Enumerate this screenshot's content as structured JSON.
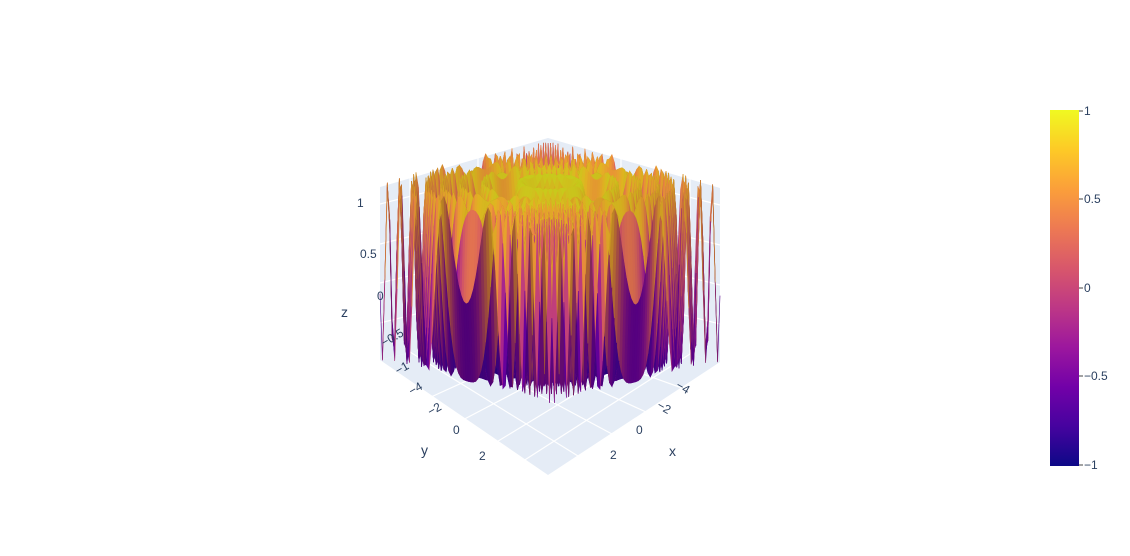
{
  "chart_data": {
    "type": "surface",
    "surface_function": "sin(x^2 + y^2)",
    "x_range": [
      -5,
      5
    ],
    "y_range": [
      -5,
      5
    ],
    "z_range": [
      -1,
      1
    ],
    "axes": {
      "x": {
        "title": "x",
        "ticks": [
          "−4",
          "−2",
          "0",
          "2"
        ]
      },
      "y": {
        "title": "y",
        "ticks": [
          "−4",
          "−2",
          "0",
          "2"
        ]
      },
      "z": {
        "title": "z",
        "ticks": [
          "−1",
          "−0.5",
          "0",
          "0.5",
          "1"
        ]
      }
    },
    "colorbar": {
      "colorscale": "plasma",
      "stops": [
        "#0d0887",
        "#46039f",
        "#7201a8",
        "#9c179e",
        "#bd3786",
        "#d8576b",
        "#ed7953",
        "#fb9f3a",
        "#fdca26",
        "#f0f921"
      ],
      "ticks": [
        "1",
        "0.5",
        "0",
        "−0.5",
        "−1"
      ],
      "range": [
        -1,
        1
      ]
    },
    "scene_background": "#e5ecf6",
    "grid": true
  }
}
